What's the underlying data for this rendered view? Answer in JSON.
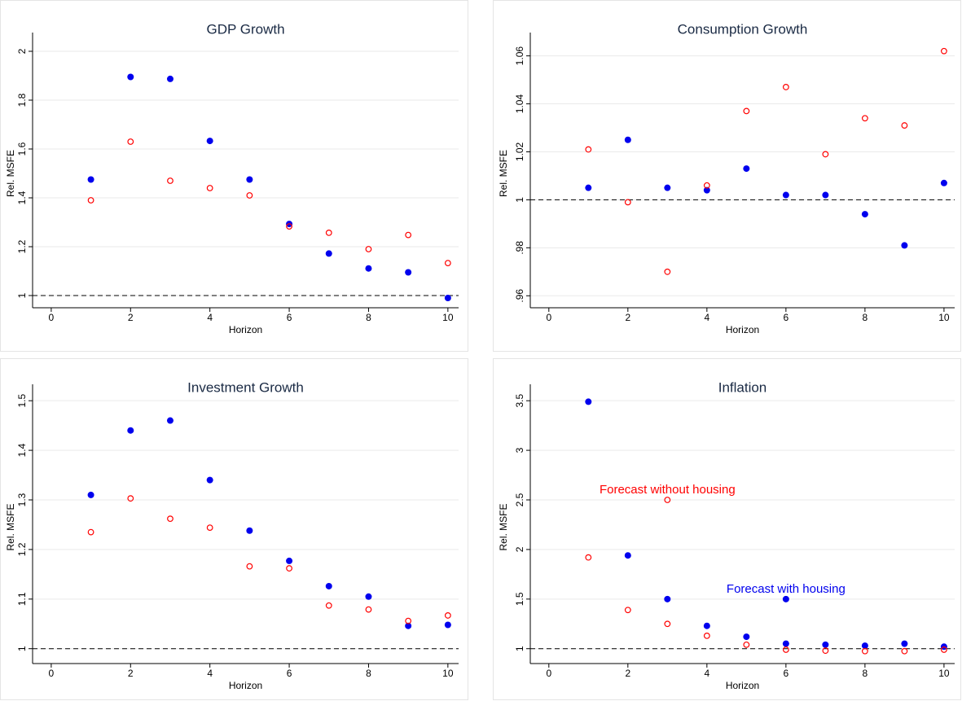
{
  "chart_data": [
    {
      "type": "scatter",
      "title": "GDP Growth",
      "x_label": "Horizon",
      "y_label": "Rel. MSFE",
      "xlim": [
        -0.47,
        10.27
      ],
      "xticks": [
        0,
        2,
        4,
        6,
        8,
        10
      ],
      "ylim": [
        0.95,
        2.05
      ],
      "yticks": [
        1,
        1.2,
        1.4,
        1.6,
        1.8,
        2
      ],
      "grid": true,
      "reference_line": 1,
      "series": [
        {
          "color": "#0000ee",
          "marker": "filled",
          "x": [
            1,
            2,
            3,
            4,
            5,
            6,
            7,
            8,
            9,
            10
          ],
          "values": [
            1.475,
            1.895,
            1.887,
            1.633,
            1.475,
            1.293,
            1.172,
            1.111,
            1.095,
            0.99
          ]
        },
        {
          "color": "#ff0000",
          "marker": "hollow",
          "x": [
            1,
            2,
            3,
            4,
            5,
            6,
            7,
            8,
            9,
            10
          ],
          "values": [
            1.39,
            1.63,
            1.47,
            1.44,
            1.41,
            1.283,
            1.257,
            1.19,
            1.248,
            1.133
          ]
        }
      ]
    },
    {
      "type": "scatter",
      "title": "Consumption Growth",
      "x_label": "Horizon",
      "y_label": "Rel. MSFE",
      "xlim": [
        -0.47,
        10.27
      ],
      "xticks": [
        0,
        2,
        4,
        6,
        8,
        10
      ],
      "ylim": [
        0.955,
        1.067
      ],
      "yticks": [
        {
          "value": 0.96,
          "label": ".96"
        },
        {
          "value": 0.98,
          "label": ".98"
        },
        1,
        1.02,
        1.04,
        1.06
      ],
      "grid": true,
      "reference_line": 1,
      "series": [
        {
          "color": "#0000ee",
          "marker": "filled",
          "x": [
            1,
            2,
            3,
            4,
            5,
            6,
            7,
            8,
            9,
            10
          ],
          "values": [
            1.005,
            1.025,
            1.005,
            1.004,
            1.013,
            1.002,
            1.002,
            0.994,
            0.981,
            1.007
          ]
        },
        {
          "color": "#ff0000",
          "marker": "hollow",
          "x": [
            1,
            2,
            3,
            4,
            5,
            6,
            7,
            8,
            9,
            10
          ],
          "values": [
            1.021,
            0.999,
            0.97,
            1.006,
            1.037,
            1.047,
            1.019,
            1.034,
            1.031,
            1.062
          ]
        }
      ]
    },
    {
      "type": "scatter",
      "title": "Investment Growth",
      "x_label": "Horizon",
      "y_label": "Rel. MSFE",
      "xlim": [
        -0.47,
        10.27
      ],
      "xticks": [
        0,
        2,
        4,
        6,
        8,
        10
      ],
      "ylim": [
        0.97,
        1.52
      ],
      "yticks": [
        1,
        1.1,
        1.2,
        1.3,
        1.4,
        1.5
      ],
      "grid": true,
      "reference_line": 1,
      "series": [
        {
          "color": "#0000ee",
          "marker": "filled",
          "x": [
            1,
            2,
            3,
            4,
            5,
            6,
            7,
            8,
            9,
            10
          ],
          "values": [
            1.31,
            1.44,
            1.46,
            1.34,
            1.238,
            1.177,
            1.126,
            1.105,
            1.046,
            1.048
          ]
        },
        {
          "color": "#ff0000",
          "marker": "hollow",
          "x": [
            1,
            2,
            3,
            4,
            5,
            6,
            7,
            8,
            9,
            10
          ],
          "values": [
            1.235,
            1.303,
            1.262,
            1.244,
            1.166,
            1.162,
            1.087,
            1.079,
            1.056,
            1.067
          ]
        }
      ]
    },
    {
      "type": "scatter",
      "title": "Inflation",
      "x_label": "Horizon",
      "y_label": "Rel. MSFE",
      "xlim": [
        -0.47,
        10.27
      ],
      "xticks": [
        0,
        2,
        4,
        6,
        8,
        10
      ],
      "ylim": [
        0.85,
        3.6
      ],
      "yticks": [
        1,
        1.5,
        2,
        2.5,
        3,
        3.5
      ],
      "grid": true,
      "reference_line": 1,
      "series": [
        {
          "color": "#0000ee",
          "marker": "filled",
          "x": [
            1,
            2,
            3,
            4,
            5,
            6,
            7,
            8,
            9,
            10
          ],
          "values": [
            3.49,
            1.94,
            1.5,
            1.23,
            1.12,
            1.05,
            1.04,
            1.03,
            1.05,
            1.02
          ]
        },
        {
          "color": "#ff0000",
          "marker": "hollow",
          "x": [
            1,
            2,
            3,
            4,
            5,
            6,
            7,
            8,
            9,
            10
          ],
          "values": [
            1.92,
            1.39,
            1.25,
            1.13,
            1.04,
            0.99,
            0.98,
            0.975,
            0.975,
            0.99
          ]
        }
      ],
      "annotations": [
        {
          "text": "Forecast without housing",
          "x": 3,
          "y": 2.5,
          "color": "#ff0000",
          "marker": "hollow"
        },
        {
          "text": "Forecast with housing",
          "x": 6,
          "y": 1.5,
          "color": "#0000ee",
          "marker": "filled"
        }
      ]
    }
  ]
}
